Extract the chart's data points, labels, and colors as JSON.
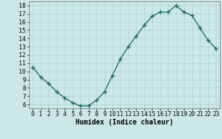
{
  "x": [
    0,
    1,
    2,
    3,
    4,
    5,
    6,
    7,
    8,
    9,
    10,
    11,
    12,
    13,
    14,
    15,
    16,
    17,
    18,
    19,
    20,
    21,
    22,
    23
  ],
  "y": [
    10.5,
    9.3,
    8.5,
    7.5,
    6.8,
    6.2,
    5.8,
    5.8,
    6.5,
    7.5,
    9.5,
    11.5,
    13.0,
    14.3,
    15.6,
    16.7,
    17.2,
    17.2,
    18.0,
    17.2,
    16.8,
    15.3,
    13.8,
    12.8
  ],
  "line_color": "#1a6b5a",
  "marker": "+",
  "bg_color": "#cce8e6",
  "grid_color": "#aed4d2",
  "xlabel": "Humidex (Indice chaleur)",
  "xlim": [
    -0.5,
    23.5
  ],
  "ylim": [
    5.5,
    18.5
  ],
  "yticks": [
    6,
    7,
    8,
    9,
    10,
    11,
    12,
    13,
    14,
    15,
    16,
    17,
    18
  ],
  "xticks": [
    0,
    1,
    2,
    3,
    4,
    5,
    6,
    7,
    8,
    9,
    10,
    11,
    12,
    13,
    14,
    15,
    16,
    17,
    18,
    19,
    20,
    21,
    22,
    23
  ],
  "linewidth": 1.0,
  "markersize": 4,
  "tick_fontsize": 6.0,
  "xlabel_fontsize": 7.0
}
